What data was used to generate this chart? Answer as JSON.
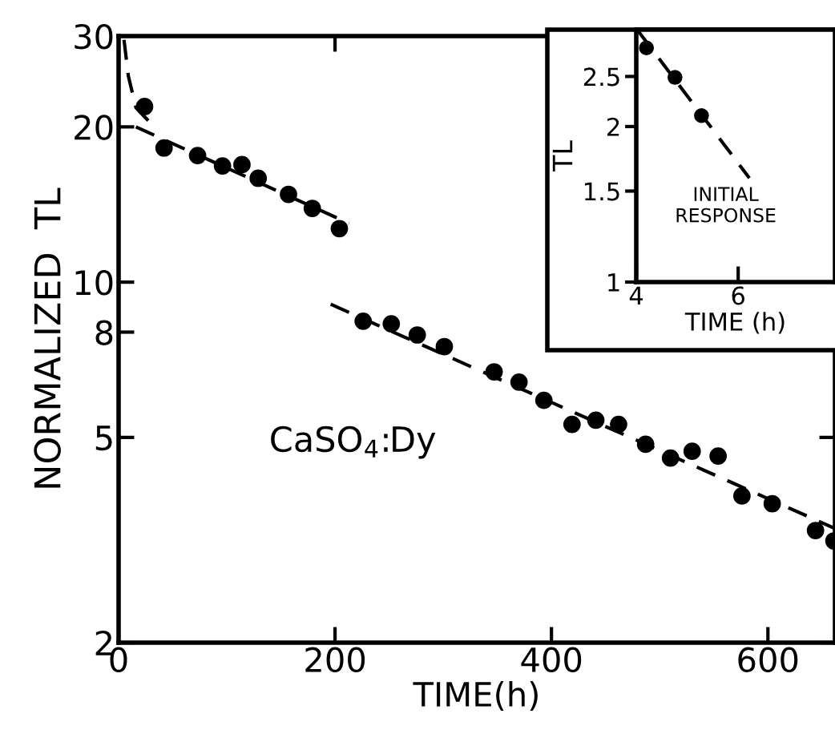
{
  "chart_data": [
    {
      "type": "scatter",
      "xlabel": "TIME(h)",
      "ylabel": "NORMALIZED  TL",
      "log": "y",
      "xlim": [
        0,
        662
      ],
      "ylim": [
        2,
        30
      ],
      "xticks": [
        0,
        200,
        400,
        600
      ],
      "yticks": [
        2,
        5,
        8,
        10,
        20,
        30
      ],
      "marker": "circle",
      "grid": false,
      "annotations": [
        "CaSO$_{4}$:Dy"
      ],
      "series": [
        {
          "color": "#000000",
          "x": [
            24,
            42,
            73,
            96,
            114,
            129,
            157,
            179,
            204
          ],
          "values": [
            21.9,
            18.2,
            17.6,
            16.8,
            16.9,
            15.9,
            14.8,
            13.9,
            12.7
          ]
        },
        {
          "color": "#000000",
          "x": [
            226,
            252,
            276,
            301,
            347,
            370,
            393,
            419,
            441,
            462,
            487,
            510,
            530,
            554,
            576,
            604,
            644,
            661
          ],
          "values": [
            8.4,
            8.3,
            7.9,
            7.5,
            6.7,
            6.4,
            5.9,
            5.3,
            5.4,
            5.3,
            4.85,
            4.56,
            4.7,
            4.6,
            3.85,
            3.72,
            3.3,
            3.15
          ]
        },
        {
          "type": "line",
          "color": "#000000",
          "line_style": "dashed",
          "marker": "none",
          "x": [
            5,
            9,
            16,
            31
          ],
          "values": [
            29.5,
            25.1,
            21.8,
            20.2
          ]
        },
        {
          "type": "line",
          "color": "#000000",
          "line_style": "dashed",
          "marker": "none",
          "x": [
            16,
            213
          ],
          "values": [
            20.0,
            13.0
          ]
        },
        {
          "type": "line",
          "color": "#000000",
          "line_style": "dashed",
          "marker": "none",
          "x": [
            196,
            662
          ],
          "values": [
            9.06,
            3.33
          ]
        }
      ]
    },
    {
      "type": "scatter",
      "xlabel": "TIME (h)",
      "ylabel": "TL",
      "log": "y",
      "xlim": [
        4,
        7.9
      ],
      "ylim": [
        1,
        3.08
      ],
      "xticks": [
        4,
        6
      ],
      "yticks": [
        1,
        1.5,
        2,
        2.5
      ],
      "marker": "circle",
      "grid": false,
      "annotations": [
        "INITIAL\nRESPONSE"
      ],
      "series": [
        {
          "color": "#000000",
          "x": [
            4.2,
            4.76,
            5.28
          ],
          "values": [
            2.84,
            2.49,
            2.1
          ]
        },
        {
          "type": "line",
          "color": "#000000",
          "line_style": "dashed",
          "marker": "none",
          "x": [
            4.05,
            6.22
          ],
          "values": [
            3.05,
            1.59
          ]
        }
      ]
    }
  ]
}
